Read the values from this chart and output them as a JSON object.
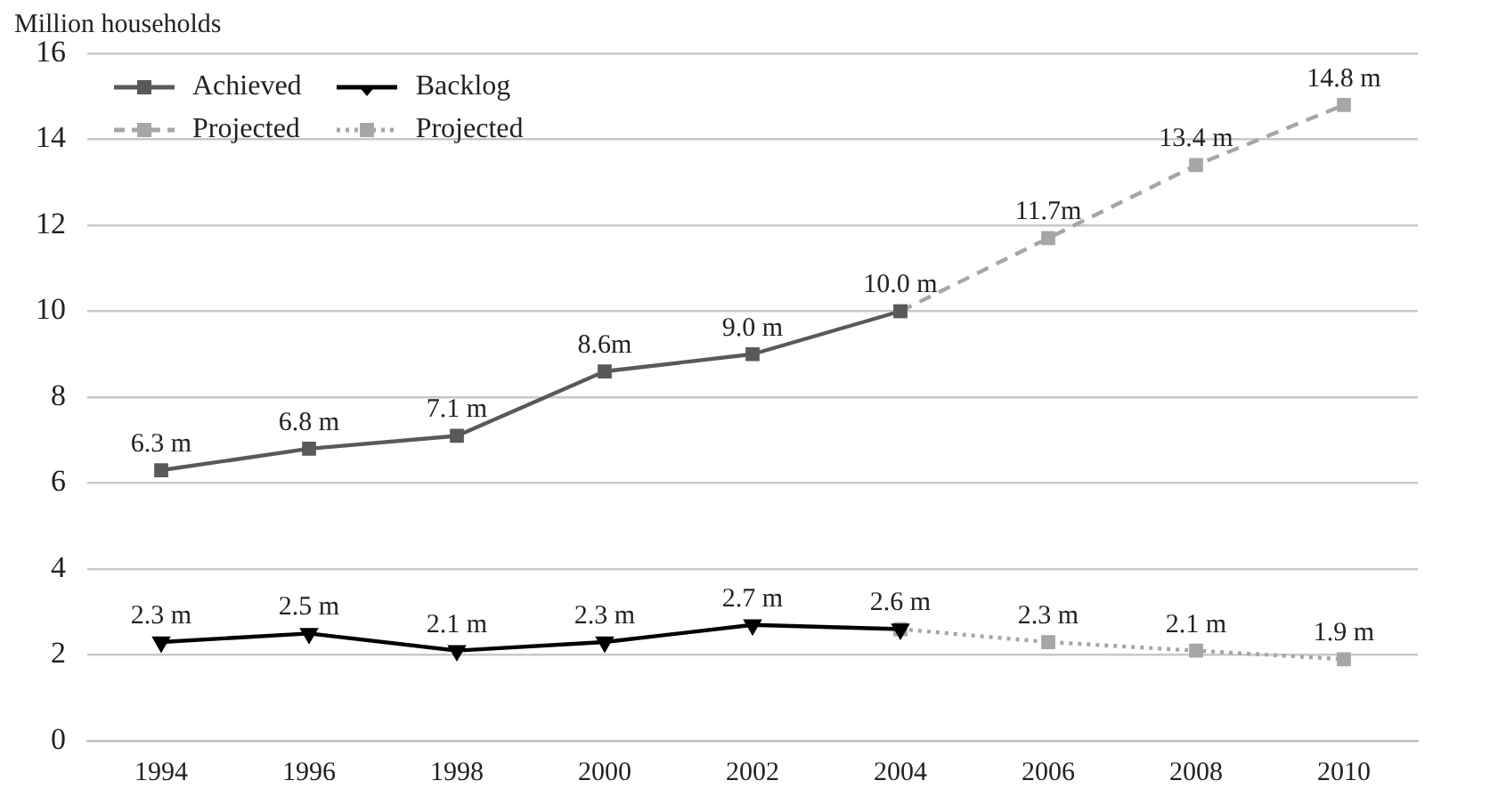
{
  "chart_data": {
    "type": "line",
    "ylabel": "Million households",
    "categories": [
      "1994",
      "1996",
      "1998",
      "2000",
      "2002",
      "2004",
      "2006",
      "2008",
      "2010"
    ],
    "series": [
      {
        "name": "Achieved",
        "color": "#595959",
        "marker": "square",
        "line_style": "solid",
        "values": [
          6.3,
          6.8,
          7.1,
          8.6,
          9.0,
          10.0,
          null,
          null,
          null
        ],
        "value_labels": [
          "6.3 m",
          "6.8 m",
          "7.1 m",
          "8.6m",
          "9.0 m",
          "10.0 m",
          null,
          null,
          null
        ]
      },
      {
        "name": "Backlog",
        "color": "#000000",
        "marker": "triangle",
        "line_style": "solid",
        "values": [
          2.3,
          2.5,
          2.1,
          2.3,
          2.7,
          2.6,
          null,
          null,
          null
        ],
        "value_labels": [
          "2.3 m",
          "2.5 m",
          "2.1 m",
          "2.3 m",
          "2.7 m",
          "2.6 m",
          null,
          null,
          null
        ]
      },
      {
        "name": "Projected",
        "color": "#a6a6a6",
        "marker": "square",
        "line_style": "dashed",
        "values": [
          null,
          null,
          null,
          null,
          null,
          10.0,
          11.7,
          13.4,
          14.8
        ],
        "value_labels": [
          null,
          null,
          null,
          null,
          null,
          null,
          "11.7m",
          "13.4 m",
          "14.8 m"
        ]
      },
      {
        "name": "Projected",
        "color": "#a6a6a6",
        "marker": "square",
        "line_style": "dotted",
        "values": [
          null,
          null,
          null,
          null,
          null,
          2.6,
          2.3,
          2.1,
          1.9
        ],
        "value_labels": [
          null,
          null,
          null,
          null,
          null,
          null,
          "2.3 m",
          "2.1 m",
          "1.9 m"
        ]
      }
    ],
    "ylim": [
      0,
      16
    ],
    "yticks": [
      0,
      2,
      4,
      6,
      8,
      10,
      12,
      14,
      16
    ],
    "grid": "y",
    "legend": "top left"
  }
}
